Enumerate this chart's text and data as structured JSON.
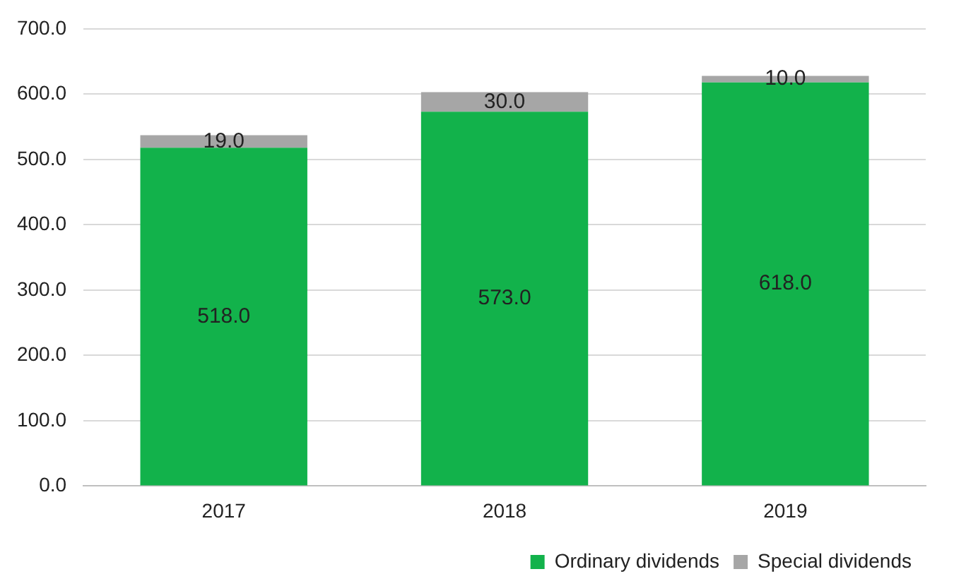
{
  "chart_data": {
    "type": "bar",
    "stacked": true,
    "categories": [
      "2017",
      "2018",
      "2019"
    ],
    "series": [
      {
        "name": "Ordinary dividends",
        "color": "#12b24b",
        "values": [
          518,
          573,
          618
        ],
        "value_labels": [
          "518.0",
          "573.0",
          "618.0"
        ]
      },
      {
        "name": "Special dividends",
        "color": "#a6a6a6",
        "values": [
          19,
          30,
          10
        ],
        "value_labels": [
          "19.0",
          "30.0",
          "10.0"
        ]
      }
    ],
    "ylim": [
      0,
      700
    ],
    "yticks": [
      {
        "value": 0,
        "label": "0.0"
      },
      {
        "value": 100,
        "label": "100.0"
      },
      {
        "value": 200,
        "label": "200.0"
      },
      {
        "value": 300,
        "label": "300.0"
      },
      {
        "value": 400,
        "label": "400.0"
      },
      {
        "value": 500,
        "label": "500.0"
      },
      {
        "value": 600,
        "label": "600.0"
      },
      {
        "value": 700,
        "label": "700.0"
      }
    ],
    "grid": "y",
    "legend": "bottom right"
  }
}
